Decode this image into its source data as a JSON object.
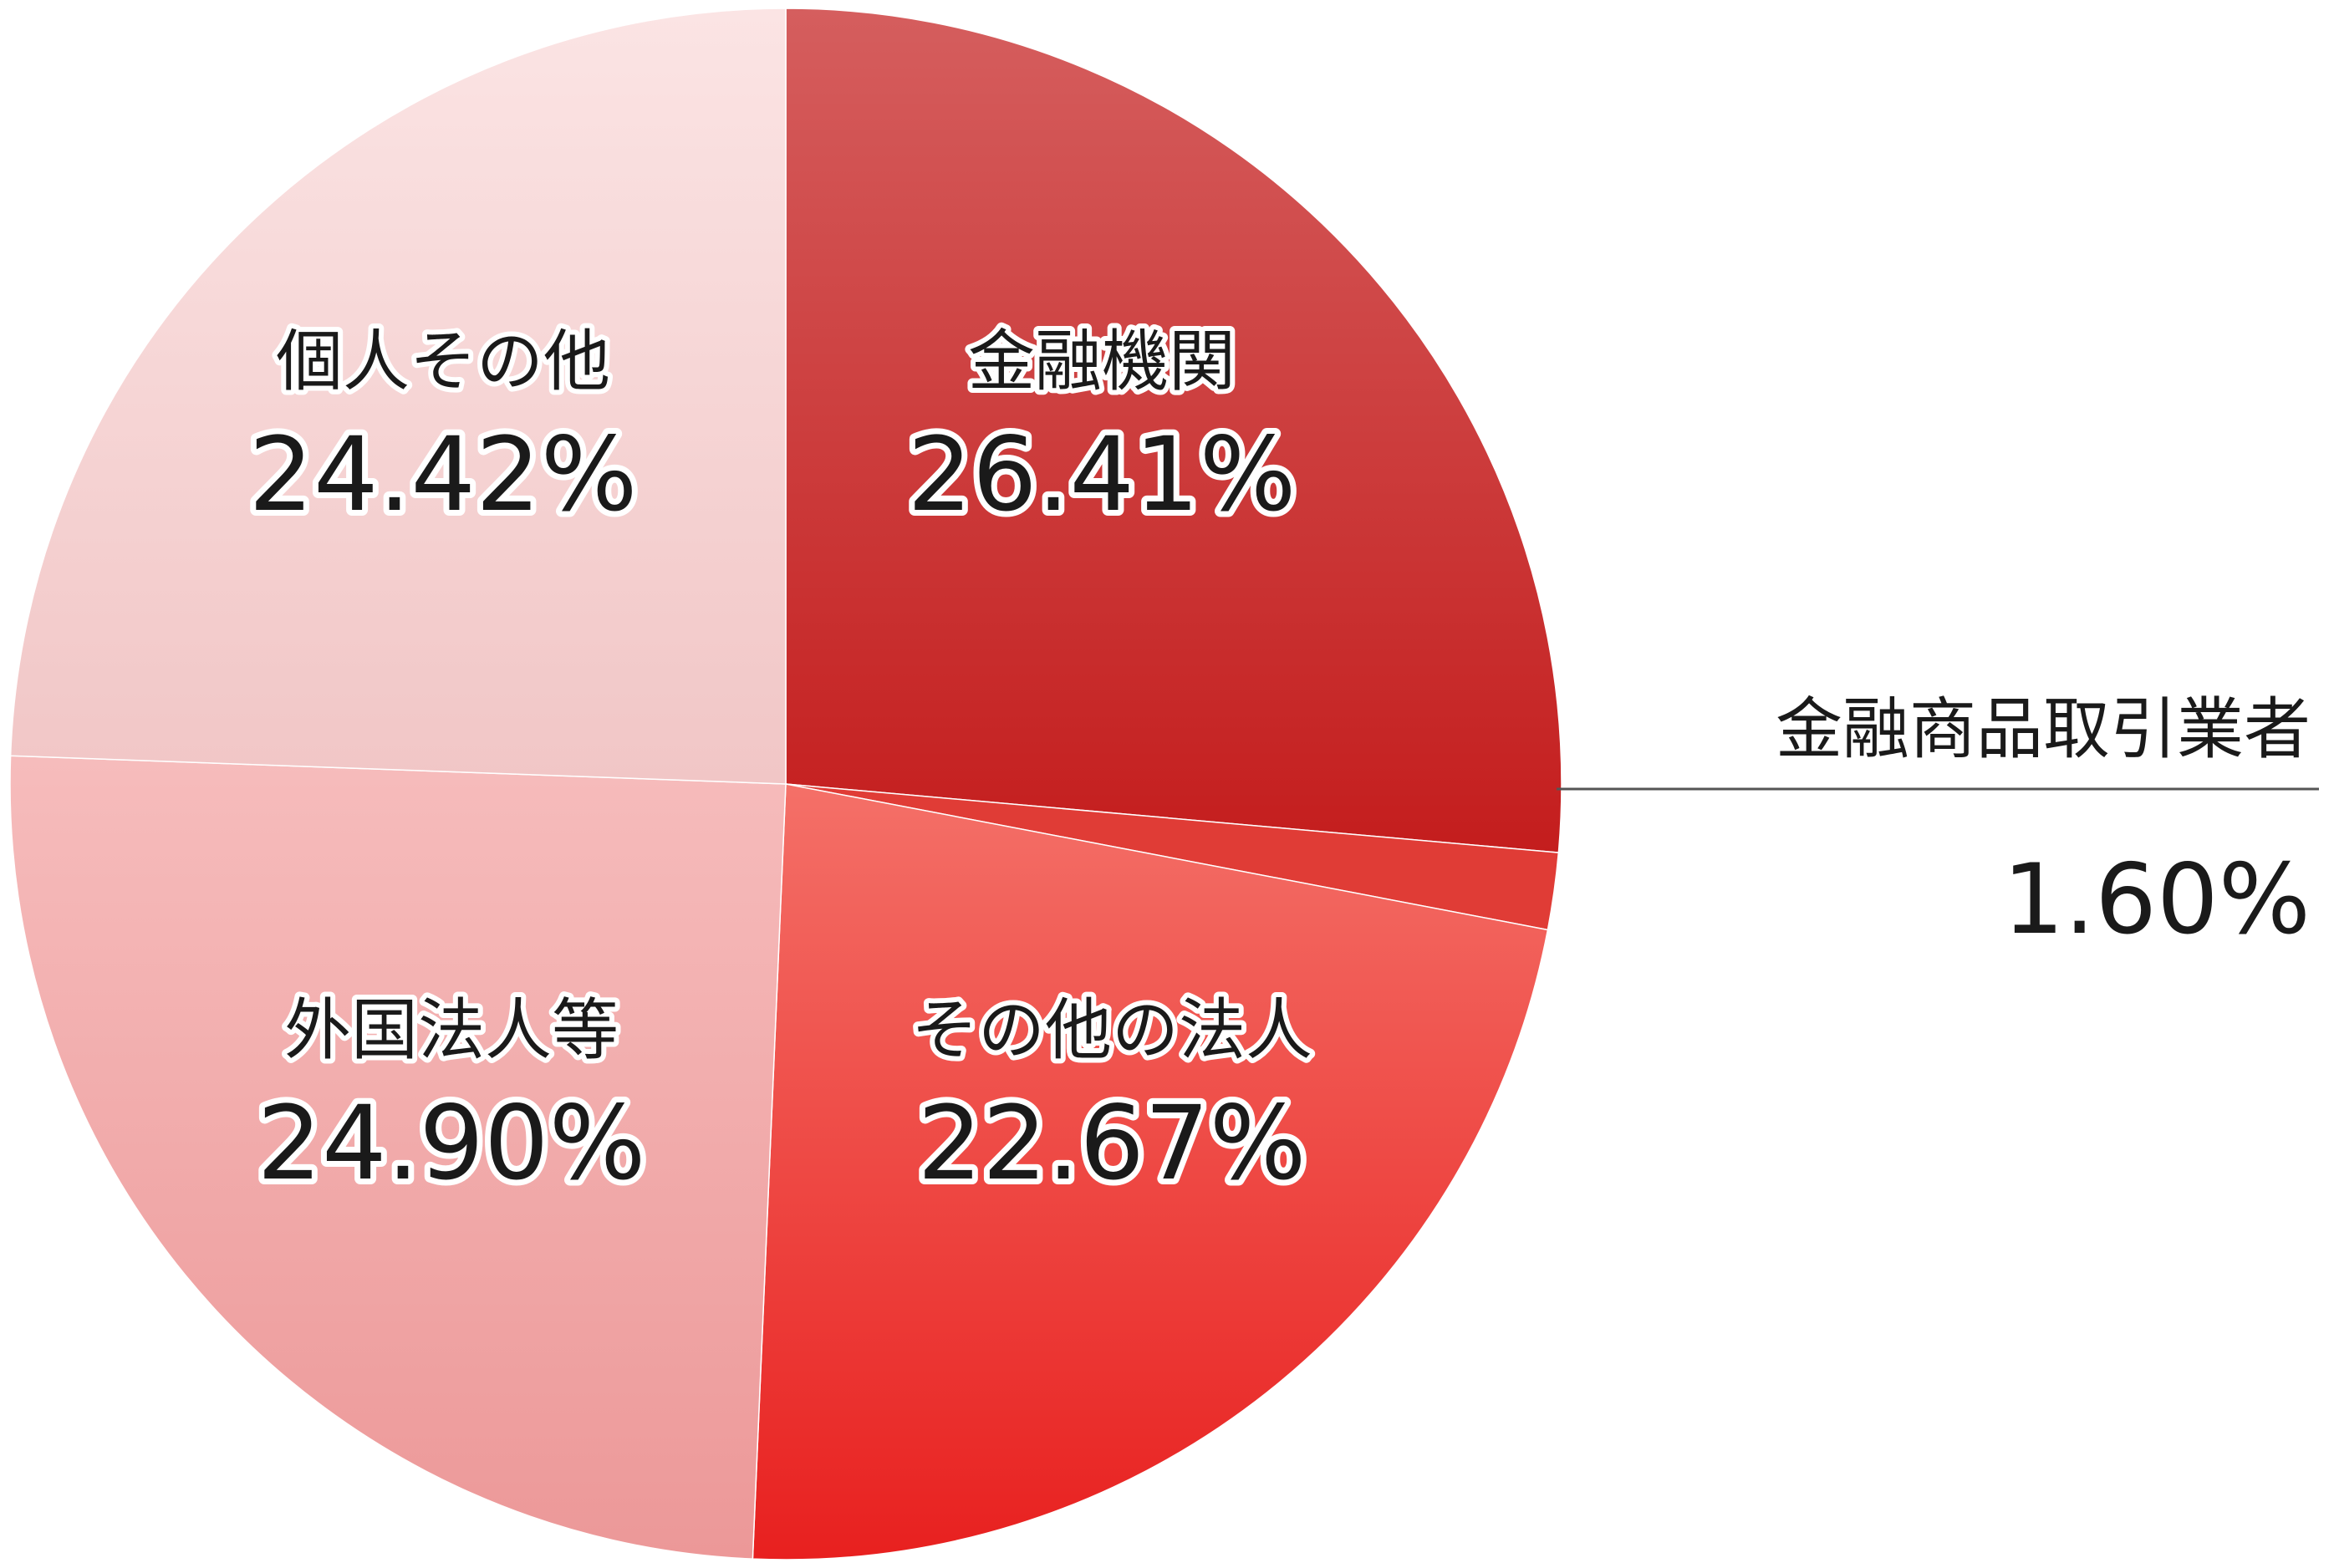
{
  "chart_data": {
    "type": "pie",
    "title": "",
    "start_angle_deg": 0,
    "direction": "clockwise",
    "slices": [
      {
        "label": "金融機関",
        "value": 26.41,
        "value_label": "26.41%",
        "color_light": "#d55e5e",
        "color_dark": "#c41d1d",
        "label_placement": "inside"
      },
      {
        "label": "金融商品取引業者",
        "value": 1.6,
        "value_label": "1.60%",
        "color_light": "#e03c36",
        "color_dark": "#e03c36",
        "label_placement": "outside-right"
      },
      {
        "label": "その他の法人",
        "value": 22.67,
        "value_label": "22.67%",
        "color_light": "#f47068",
        "color_dark": "#e8201f",
        "label_placement": "inside"
      },
      {
        "label": "外国法人等",
        "value": 24.9,
        "value_label": "24.90%",
        "color_light": "#f6bcbc",
        "color_dark": "#ec9898",
        "label_placement": "inside"
      },
      {
        "label": "個人その他",
        "value": 24.42,
        "value_label": "24.42%",
        "color_light": "#fbe4e4",
        "color_dark": "#f1c6c6",
        "label_placement": "inside"
      }
    ]
  }
}
